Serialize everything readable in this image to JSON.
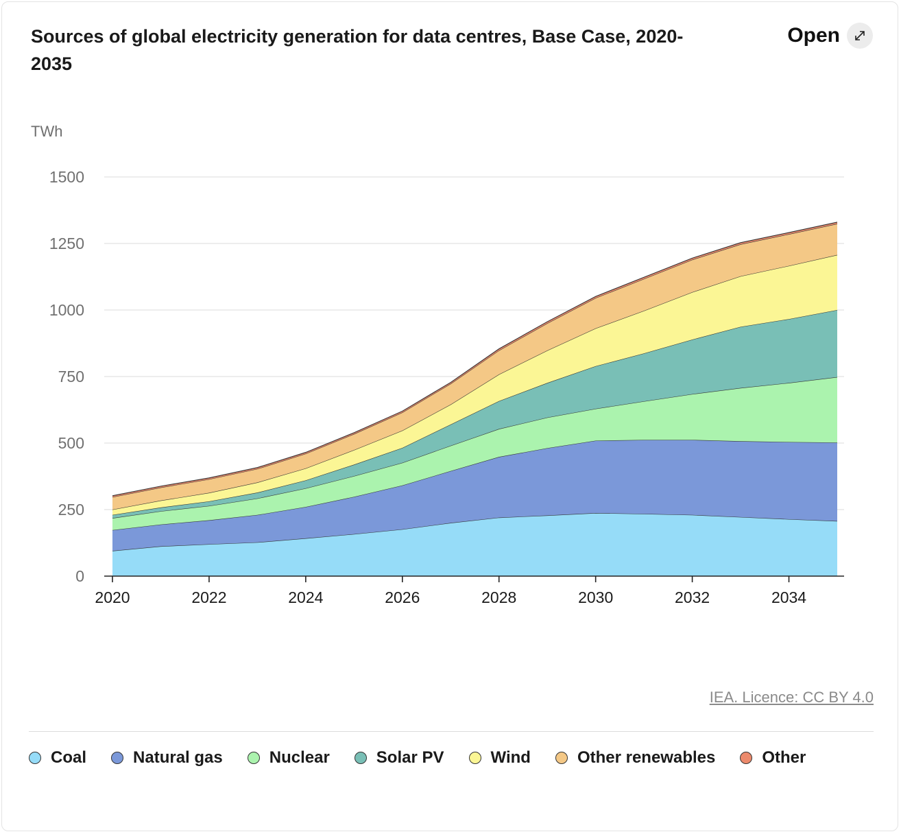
{
  "header": {
    "title": "Sources of global electricity generation for data centres, Base Case, 2020-2035",
    "open_label": "Open"
  },
  "credit": "IEA. Licence: CC BY 4.0",
  "chart_data": {
    "type": "area",
    "stacked": true,
    "title": "Sources of global electricity generation for data centres, Base Case, 2020-2035",
    "ylabel": "TWh",
    "xlabel": "",
    "ylim": [
      0,
      1500
    ],
    "yticks": [
      0,
      250,
      500,
      750,
      1000,
      1250,
      1500
    ],
    "xticks": [
      2020,
      2022,
      2024,
      2026,
      2028,
      2030,
      2032,
      2034
    ],
    "x": [
      2020,
      2021,
      2022,
      2023,
      2024,
      2025,
      2026,
      2027,
      2028,
      2029,
      2030,
      2031,
      2032,
      2033,
      2034,
      2035
    ],
    "grid": true,
    "legend_position": "bottom",
    "series": [
      {
        "name": "Coal",
        "color": "#96dcf8",
        "values": [
          95,
          112,
          120,
          127,
          142,
          158,
          176,
          200,
          220,
          228,
          237,
          234,
          230,
          222,
          214,
          207
        ]
      },
      {
        "name": "Natural gas",
        "color": "#7b98d9",
        "values": [
          78,
          82,
          90,
          103,
          118,
          140,
          165,
          195,
          228,
          253,
          272,
          278,
          282,
          285,
          290,
          295
        ]
      },
      {
        "name": "Nuclear",
        "color": "#abf3ae",
        "values": [
          45,
          50,
          54,
          62,
          70,
          78,
          85,
          95,
          105,
          115,
          120,
          145,
          172,
          200,
          222,
          246
        ]
      },
      {
        "name": "Solar PV",
        "color": "#79bfb6",
        "values": [
          12,
          14,
          17,
          22,
          30,
          43,
          56,
          80,
          105,
          130,
          160,
          180,
          205,
          230,
          240,
          252
        ]
      },
      {
        "name": "Wind",
        "color": "#fbf695",
        "values": [
          20,
          26,
          32,
          38,
          45,
          55,
          65,
          75,
          100,
          122,
          142,
          160,
          178,
          190,
          200,
          207
        ]
      },
      {
        "name": "Other renewables",
        "color": "#f4c886",
        "values": [
          47,
          49,
          51,
          51,
          55,
          60,
          68,
          78,
          90,
          102,
          114,
          120,
          122,
          120,
          119,
          117
        ]
      },
      {
        "name": "Other",
        "color": "#ec8a6c",
        "values": [
          5,
          5,
          5,
          5,
          5,
          5,
          5,
          5,
          6,
          6,
          6,
          6,
          6,
          6,
          6,
          6
        ]
      }
    ]
  }
}
